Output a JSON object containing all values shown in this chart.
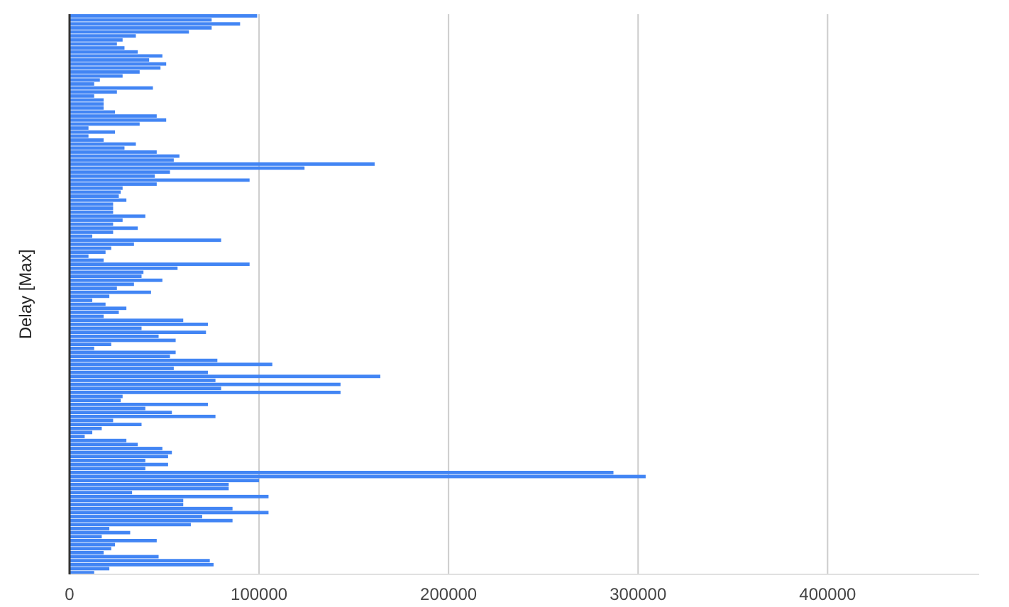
{
  "chart_data": {
    "type": "bar",
    "orientation": "horizontal",
    "ylabel": "Delay [Max]",
    "color": "#4285f4",
    "grid": "x",
    "xlim": [
      0,
      480000
    ],
    "xticks": [
      0,
      100000,
      200000,
      300000,
      400000
    ],
    "values": [
      99000,
      75000,
      90000,
      75000,
      63000,
      35000,
      28000,
      25000,
      29000,
      36000,
      49000,
      42000,
      51000,
      48000,
      37000,
      28000,
      16000,
      13000,
      44000,
      25000,
      13000,
      18000,
      18000,
      18000,
      24000,
      46000,
      51000,
      37000,
      10000,
      24000,
      10000,
      18000,
      35000,
      29000,
      46000,
      58000,
      55000,
      161000,
      124000,
      53000,
      45000,
      95000,
      46000,
      28000,
      27000,
      26000,
      30000,
      23000,
      23000,
      23000,
      40000,
      28000,
      23000,
      36000,
      23000,
      12000,
      80000,
      34000,
      22000,
      19000,
      10000,
      18000,
      95000,
      57000,
      39000,
      38000,
      49000,
      34000,
      25000,
      43000,
      21000,
      12000,
      19000,
      30000,
      26000,
      18000,
      60000,
      73000,
      38000,
      72000,
      47000,
      56000,
      22000,
      13000,
      56000,
      53000,
      78000,
      107000,
      55000,
      73000,
      164000,
      77000,
      143000,
      80000,
      143000,
      28000,
      27000,
      73000,
      40000,
      54000,
      77000,
      23000,
      38000,
      17000,
      12000,
      8000,
      30000,
      36000,
      49000,
      54000,
      52000,
      40000,
      52000,
      40000,
      287000,
      304000,
      100000,
      84000,
      84000,
      33000,
      105000,
      60000,
      60000,
      86000,
      105000,
      70000,
      86000,
      64000,
      21000,
      32000,
      17000,
      46000,
      24000,
      22000,
      18000,
      47000,
      74000,
      76000,
      21000,
      13000
    ]
  }
}
